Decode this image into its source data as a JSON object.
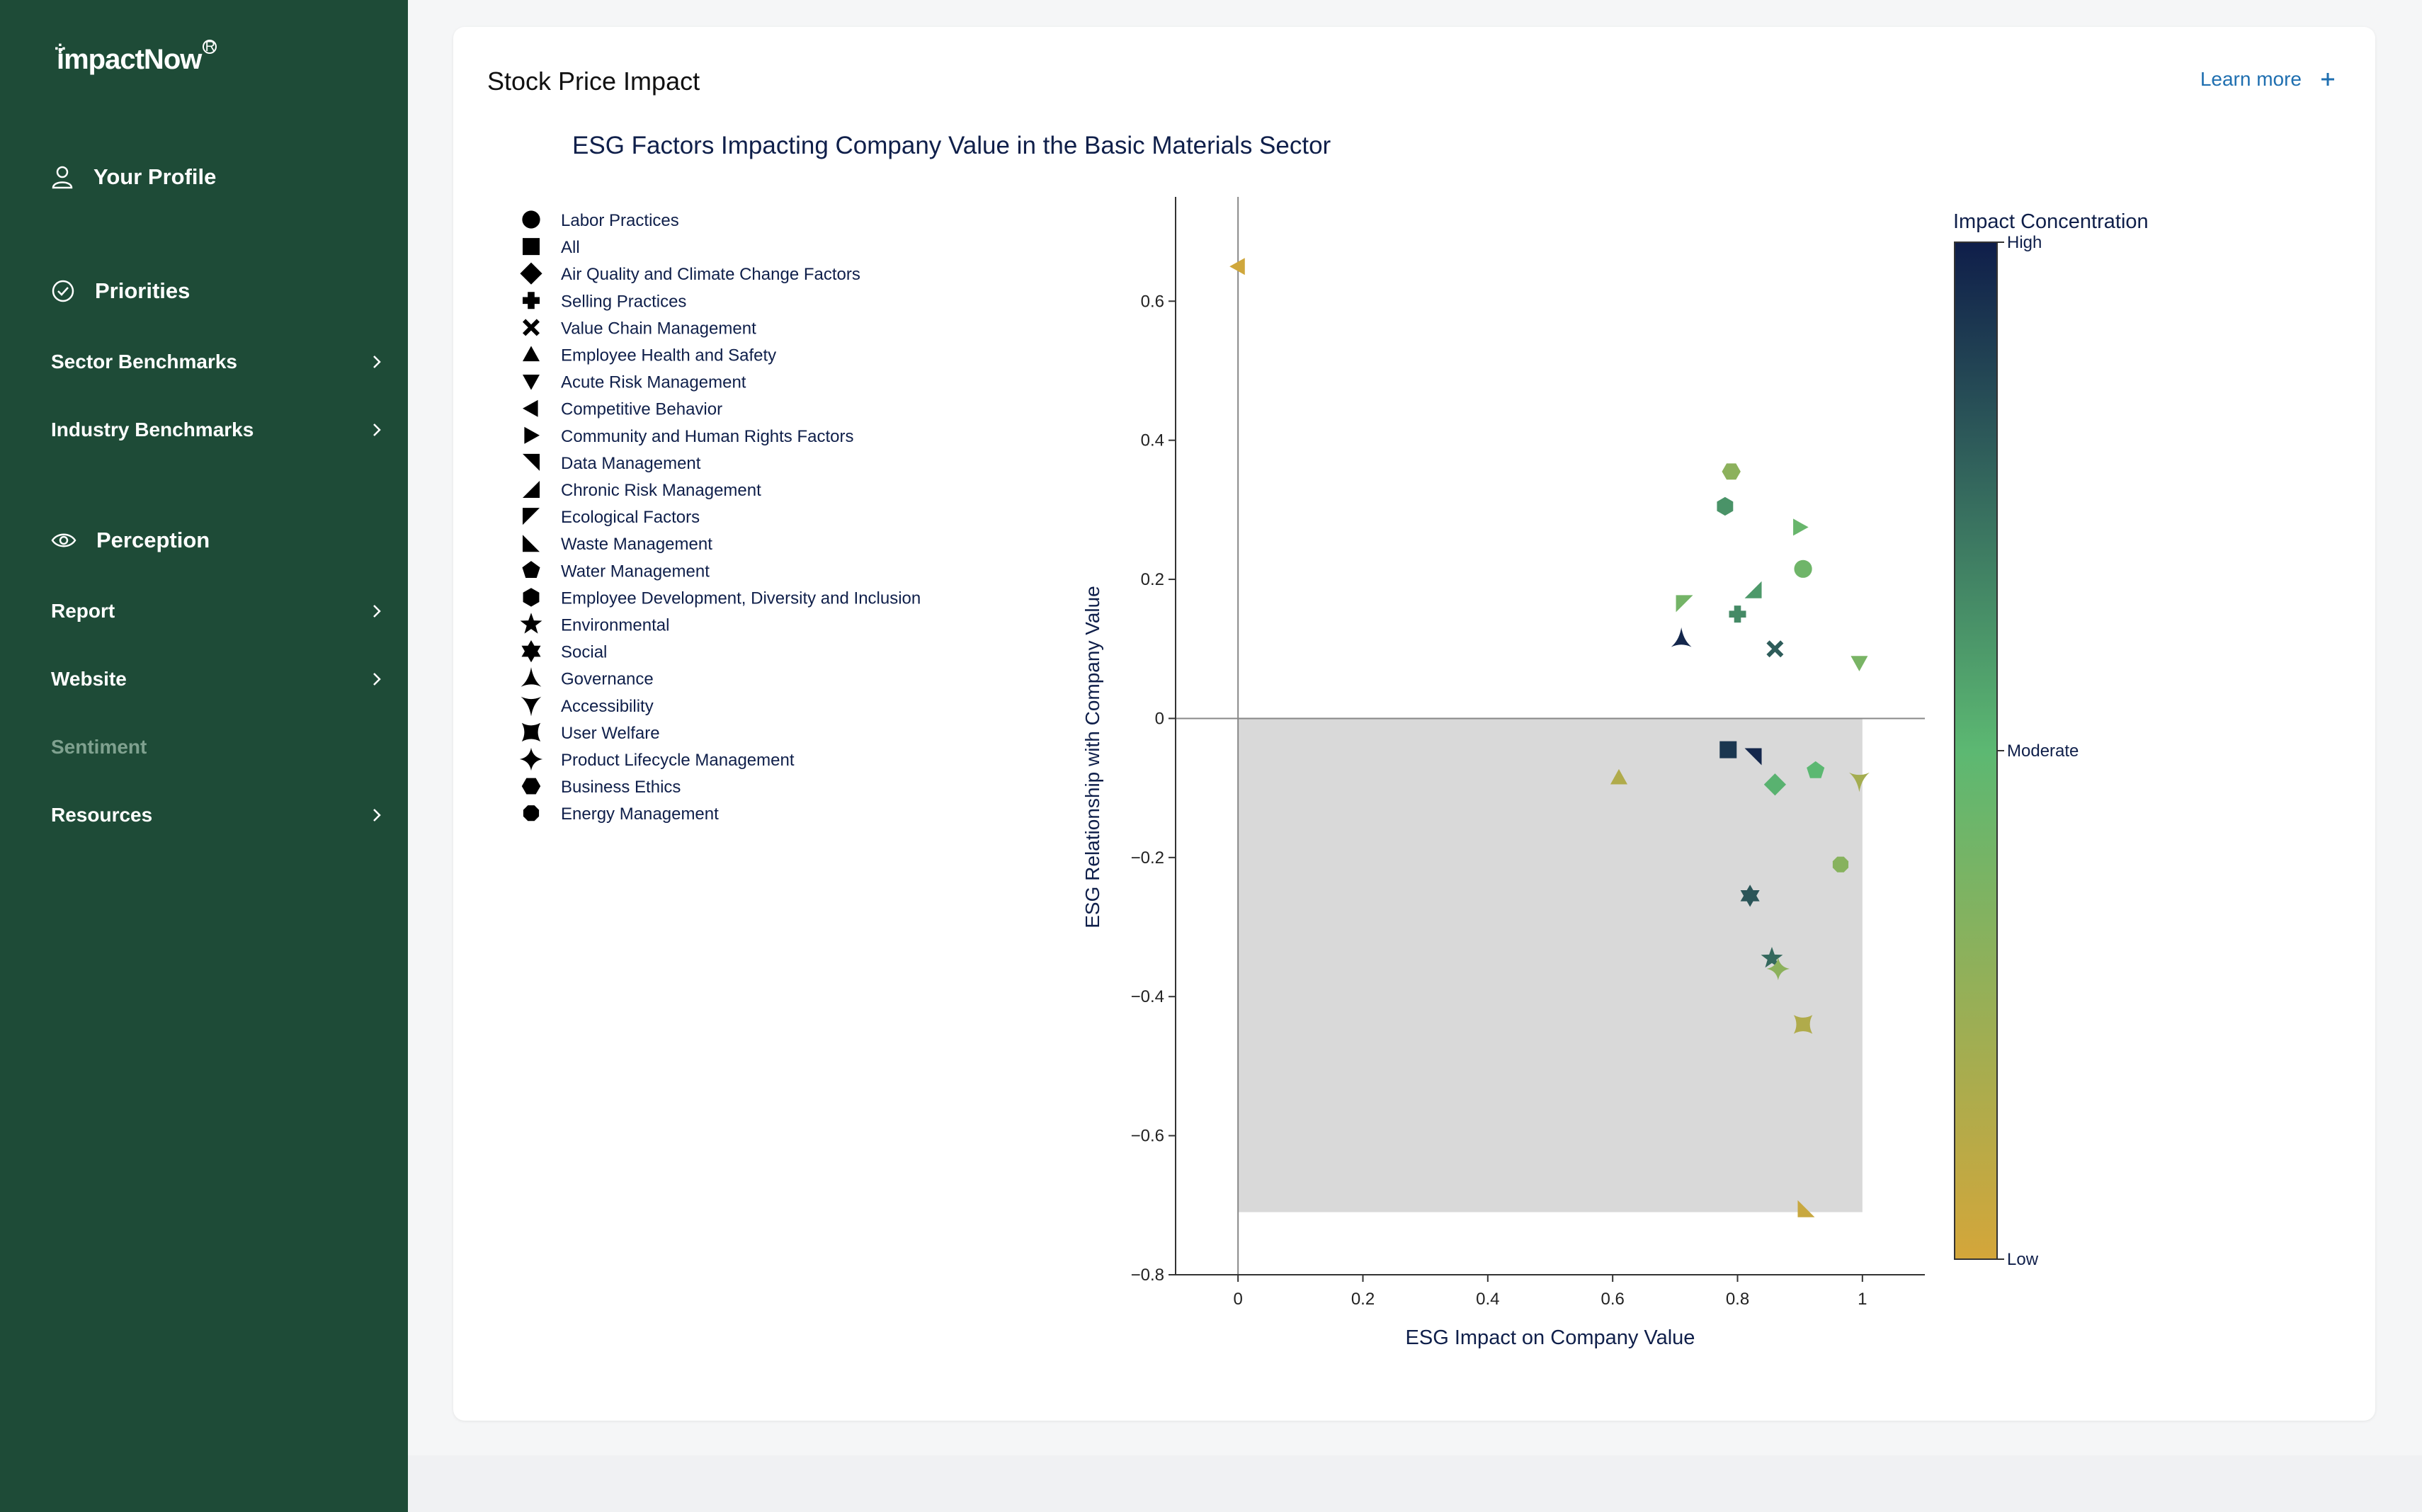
{
  "brand": {
    "name": "impactNow"
  },
  "sidebar": {
    "sections": [
      {
        "label": "Your Profile",
        "icon": "user-icon"
      },
      {
        "label": "Priorities",
        "icon": "check-circle-icon"
      },
      {
        "label": "Perception",
        "icon": "eye-icon"
      }
    ],
    "items": [
      {
        "label": "Sector Benchmarks",
        "chevron": true
      },
      {
        "label": "Industry Benchmarks",
        "chevron": true
      },
      {
        "label": "Report",
        "chevron": true
      },
      {
        "label": "Website",
        "chevron": true
      },
      {
        "label": "Sentiment",
        "chevron": false,
        "disabled": true
      },
      {
        "label": "Resources",
        "chevron": true
      }
    ]
  },
  "card": {
    "title": "Stock Price Impact",
    "learn_more": "Learn more"
  },
  "colors": {
    "sidebar_bg": "#1e4b37",
    "link": "#1f6fb0",
    "colorscale_high": "#0f1e4a",
    "colorscale_moderate": "#5cb872",
    "colorscale_low": "#d4a63a",
    "quadrant_fill": "#d9d9d9"
  },
  "chart_data": {
    "type": "scatter",
    "title": "ESG Factors Impacting Company Value in the Basic Materials Sector",
    "xlabel": "ESG Impact on Company Value",
    "ylabel": "ESG Relationship with Company Value",
    "xlim": [
      -0.1,
      1.1
    ],
    "ylim": [
      -0.8,
      0.75
    ],
    "xticks": [
      0,
      0.2,
      0.4,
      0.6,
      0.8,
      1
    ],
    "yticks": [
      -0.8,
      -0.6,
      -0.4,
      -0.2,
      0,
      0.2,
      0.4,
      0.6
    ],
    "shaded_region": {
      "x": [
        0,
        1
      ],
      "y": [
        -0.71,
        0
      ]
    },
    "colorbar": {
      "title": "Impact Concentration",
      "labels": [
        "High",
        "Moderate",
        "Low"
      ]
    },
    "legend_position": "left",
    "legend": [
      {
        "name": "Labor Practices",
        "symbol": "circle"
      },
      {
        "name": "All",
        "symbol": "square"
      },
      {
        "name": "Air Quality and Climate Change Factors",
        "symbol": "diamond"
      },
      {
        "name": "Selling Practices",
        "symbol": "cross"
      },
      {
        "name": "Value Chain Management",
        "symbol": "x"
      },
      {
        "name": "Employee Health and Safety",
        "symbol": "triangle-up"
      },
      {
        "name": "Acute Risk Management",
        "symbol": "triangle-down"
      },
      {
        "name": "Competitive Behavior",
        "symbol": "triangle-left"
      },
      {
        "name": "Community and Human Rights Factors",
        "symbol": "triangle-right"
      },
      {
        "name": "Data Management",
        "symbol": "triangle-ne"
      },
      {
        "name": "Chronic Risk Management",
        "symbol": "triangle-se"
      },
      {
        "name": "Ecological Factors",
        "symbol": "triangle-sw"
      },
      {
        "name": "Waste Management",
        "symbol": "triangle-nw"
      },
      {
        "name": "Water Management",
        "symbol": "pentagon"
      },
      {
        "name": "Employee Development, Diversity and Inclusion",
        "symbol": "hexagon"
      },
      {
        "name": "Environmental",
        "symbol": "star"
      },
      {
        "name": "Social",
        "symbol": "hexagram"
      },
      {
        "name": "Governance",
        "symbol": "star-triangle-up"
      },
      {
        "name": "Accessibility",
        "symbol": "star-triangle-down"
      },
      {
        "name": "User Welfare",
        "symbol": "star-square"
      },
      {
        "name": "Product Lifecycle Management",
        "symbol": "star-diamond"
      },
      {
        "name": "Business Ethics",
        "symbol": "hexagon2"
      },
      {
        "name": "Energy Management",
        "symbol": "octagon"
      }
    ],
    "points": [
      {
        "series": "Competitive Behavior",
        "x": 0.0,
        "y": 0.65,
        "c": 0.02
      },
      {
        "series": "Business Ethics",
        "x": 0.79,
        "y": 0.355,
        "c": 0.3
      },
      {
        "series": "Employee Development, Diversity and Inclusion",
        "x": 0.78,
        "y": 0.305,
        "c": 0.62
      },
      {
        "series": "Community and Human Rights Factors",
        "x": 0.9,
        "y": 0.275,
        "c": 0.45
      },
      {
        "series": "Labor Practices",
        "x": 0.905,
        "y": 0.215,
        "c": 0.42
      },
      {
        "series": "Chronic Risk Management",
        "x": 0.825,
        "y": 0.185,
        "c": 0.6
      },
      {
        "series": "Ecological Factors",
        "x": 0.715,
        "y": 0.165,
        "c": 0.4
      },
      {
        "series": "Selling Practices",
        "x": 0.8,
        "y": 0.15,
        "c": 0.65
      },
      {
        "series": "Governance",
        "x": 0.71,
        "y": 0.115,
        "c": 0.97
      },
      {
        "series": "Value Chain Management",
        "x": 0.86,
        "y": 0.1,
        "c": 0.8
      },
      {
        "series": "Acute Risk Management",
        "x": 0.995,
        "y": 0.08,
        "c": 0.38
      },
      {
        "series": "All",
        "x": 0.785,
        "y": -0.045,
        "c": 0.92
      },
      {
        "series": "Data Management",
        "x": 0.825,
        "y": -0.055,
        "c": 0.97
      },
      {
        "series": "Employee Health and Safety",
        "x": 0.61,
        "y": -0.085,
        "c": 0.15
      },
      {
        "series": "Water Management",
        "x": 0.925,
        "y": -0.075,
        "c": 0.5
      },
      {
        "series": "Air Quality and Climate Change Factors",
        "x": 0.86,
        "y": -0.095,
        "c": 0.52
      },
      {
        "series": "Accessibility",
        "x": 0.995,
        "y": -0.09,
        "c": 0.2
      },
      {
        "series": "Energy Management",
        "x": 0.965,
        "y": -0.21,
        "c": 0.32
      },
      {
        "series": "Social",
        "x": 0.82,
        "y": -0.255,
        "c": 0.82
      },
      {
        "series": "Environmental",
        "x": 0.855,
        "y": -0.345,
        "c": 0.76
      },
      {
        "series": "Product Lifecycle Management",
        "x": 0.865,
        "y": -0.36,
        "c": 0.3
      },
      {
        "series": "User Welfare",
        "x": 0.905,
        "y": -0.44,
        "c": 0.15
      },
      {
        "series": "Waste Management",
        "x": 0.91,
        "y": -0.705,
        "c": 0.05
      }
    ]
  }
}
